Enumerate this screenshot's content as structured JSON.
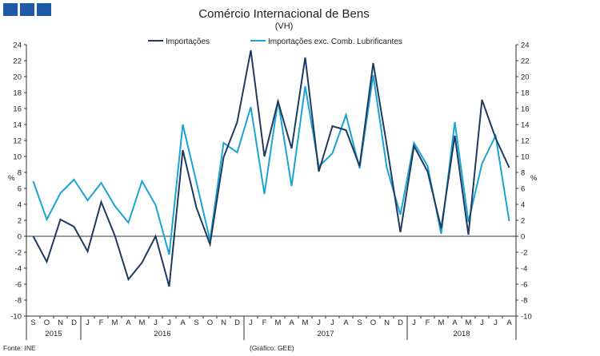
{
  "header": {
    "title": "Comércio Internacional de Bens",
    "subtitle": "(VH)"
  },
  "footer": {
    "source": "Fonte: INE",
    "credit": "(Gráfico: GEE)"
  },
  "colors": {
    "series1": "#1f3a5f",
    "series2": "#1aa3d4",
    "logo": "#1f5aa6",
    "axis": "#333333"
  },
  "chart_data": {
    "type": "line",
    "title": "Comércio Internacional de Bens",
    "subtitle": "(VH)",
    "ylabel_left": "%",
    "ylabel_right": "%",
    "ylim": [
      -10,
      24
    ],
    "yticks": [
      -10,
      -8,
      -6,
      -4,
      -2,
      0,
      2,
      4,
      6,
      8,
      10,
      12,
      14,
      16,
      18,
      20,
      22,
      24
    ],
    "legend_position": "top-center",
    "grid": false,
    "months": [
      "S",
      "O",
      "N",
      "D",
      "J",
      "F",
      "M",
      "A",
      "M",
      "J",
      "J",
      "A",
      "S",
      "O",
      "N",
      "D",
      "J",
      "F",
      "M",
      "A",
      "M",
      "J",
      "J",
      "A",
      "S",
      "O",
      "N",
      "D",
      "J",
      "F",
      "M",
      "A",
      "M",
      "J",
      "J",
      "A"
    ],
    "years": [
      {
        "label": "2015",
        "start": 0,
        "count": 4
      },
      {
        "label": "2016",
        "start": 4,
        "count": 12
      },
      {
        "label": "2017",
        "start": 16,
        "count": 12
      },
      {
        "label": "2018",
        "start": 28,
        "count": 8
      }
    ],
    "series": [
      {
        "name": "Importações",
        "values": [
          0,
          -3.2,
          2.1,
          1.2,
          -1.9,
          4.3,
          0.1,
          -5.4,
          -3.3,
          0,
          -6.3,
          10.8,
          3.6,
          -1.0,
          9.9,
          14.3,
          23.3,
          10.0,
          16.9,
          11.0,
          22.4,
          8.1,
          13.8,
          13.3,
          8.8,
          21.7,
          11.4,
          0.5,
          11.3,
          8.1,
          1.0,
          12.6,
          0.2,
          17.1,
          12.3,
          8.6
        ]
      },
      {
        "name": "Importações exc. Comb. Lubrificantes",
        "values": [
          6.9,
          2.1,
          5.4,
          7.1,
          4.5,
          6.7,
          3.8,
          1.7,
          6.9,
          3.9,
          -2.3,
          14.0,
          6.8,
          -0.5,
          11.7,
          10.5,
          16.2,
          5.3,
          17.0,
          6.3,
          18.8,
          8.7,
          10.4,
          15.2,
          8.5,
          20.2,
          8.6,
          2.7,
          11.7,
          8.8,
          0.3,
          14.3,
          1.8,
          9.1,
          12.6,
          1.9
        ]
      }
    ]
  }
}
